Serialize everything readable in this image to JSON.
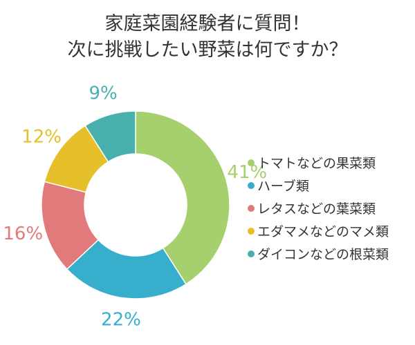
{
  "title_lines": [
    "家庭菜園経験者に質問！",
    "次に挑戦したい野菜は何ですか？"
  ],
  "colors": {
    "fruit_veg": "#a6d06e",
    "herb": "#37afcc",
    "leaf_veg": "#e17b7b",
    "pulses": "#e6c02a",
    "root_veg": "#48b0ad"
  },
  "chart_data": {
    "type": "pie",
    "title": "家庭菜園経験者に質問！ 次に挑戦したい野菜は何ですか？",
    "donut": true,
    "legend_position": "right",
    "slices": [
      {
        "label": "トマトなどの果菜類",
        "value": 41,
        "value_label": "41%",
        "color": "#a6d06e"
      },
      {
        "label": "ハーブ類",
        "value": 22,
        "value_label": "22%",
        "color": "#37afcc"
      },
      {
        "label": "レタスなどの葉菜類",
        "value": 16,
        "value_label": "16%",
        "color": "#e17b7b"
      },
      {
        "label": "エダマメなどのマメ類",
        "value": 12,
        "value_label": "12%",
        "color": "#e6c02a"
      },
      {
        "label": "ダイコンなどの根菜類",
        "value": 9,
        "value_label": "9%",
        "color": "#48b0ad"
      }
    ]
  }
}
